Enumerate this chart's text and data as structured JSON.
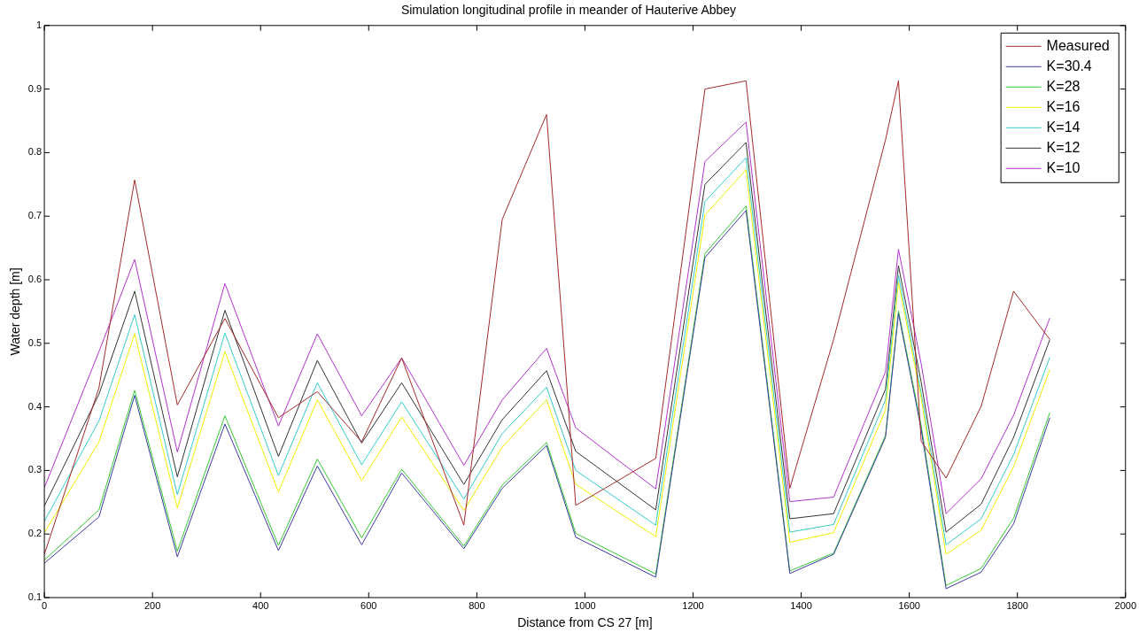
{
  "chart_data": {
    "type": "line",
    "title": "Simulation longitudinal profile in meander of Hauterive Abbey",
    "xlabel": "Distance from CS 27 [m]",
    "ylabel": "Water depth [m]",
    "x": [
      0,
      101,
      167,
      246,
      334,
      433,
      505,
      587,
      661,
      776,
      847,
      929,
      983,
      1131,
      1222,
      1298,
      1379,
      1460,
      1556,
      1580,
      1622,
      1668,
      1733,
      1793,
      1860
    ],
    "series": [
      {
        "name": "Measured",
        "color": "#a52a2a",
        "values": [
          0.168,
          0.43,
          0.757,
          0.403,
          0.539,
          0.383,
          0.424,
          0.345,
          0.477,
          0.214,
          0.695,
          0.86,
          0.245,
          0.319,
          0.9,
          0.913,
          0.272,
          0.506,
          0.82,
          0.913,
          0.346,
          0.288,
          0.401,
          0.582,
          0.506
        ]
      },
      {
        "name": "K=30.4",
        "color": "#3c3ca0",
        "values": [
          0.154,
          0.227,
          0.418,
          0.164,
          0.373,
          0.174,
          0.307,
          0.183,
          0.296,
          0.177,
          0.272,
          0.339,
          0.195,
          0.132,
          0.635,
          0.709,
          0.138,
          0.168,
          0.352,
          0.547,
          0.365,
          0.114,
          0.14,
          0.216,
          0.383
        ]
      },
      {
        "name": "K=28",
        "color": "#33cc33",
        "values": [
          0.159,
          0.238,
          0.426,
          0.173,
          0.386,
          0.182,
          0.318,
          0.194,
          0.302,
          0.181,
          0.277,
          0.344,
          0.201,
          0.137,
          0.641,
          0.716,
          0.142,
          0.17,
          0.355,
          0.551,
          0.371,
          0.119,
          0.146,
          0.225,
          0.391
        ]
      },
      {
        "name": "K=16",
        "color": "#f0f000",
        "values": [
          0.202,
          0.345,
          0.515,
          0.241,
          0.487,
          0.266,
          0.411,
          0.284,
          0.384,
          0.237,
          0.337,
          0.411,
          0.278,
          0.196,
          0.702,
          0.773,
          0.187,
          0.202,
          0.395,
          0.596,
          0.414,
          0.168,
          0.206,
          0.306,
          0.459
        ]
      },
      {
        "name": "K=14",
        "color": "#33cccc",
        "values": [
          0.22,
          0.378,
          0.545,
          0.262,
          0.516,
          0.292,
          0.438,
          0.309,
          0.408,
          0.255,
          0.358,
          0.431,
          0.3,
          0.214,
          0.723,
          0.792,
          0.203,
          0.215,
          0.411,
          0.607,
          0.422,
          0.183,
          0.224,
          0.325,
          0.478
        ]
      },
      {
        "name": "K=12",
        "color": "#333333",
        "values": [
          0.244,
          0.42,
          0.582,
          0.29,
          0.552,
          0.322,
          0.473,
          0.343,
          0.438,
          0.278,
          0.38,
          0.457,
          0.33,
          0.238,
          0.75,
          0.816,
          0.224,
          0.232,
          0.428,
          0.622,
          0.439,
          0.203,
          0.247,
          0.352,
          0.506
        ]
      },
      {
        "name": "K=10",
        "color": "#b233cc",
        "values": [
          0.273,
          0.487,
          0.632,
          0.329,
          0.594,
          0.37,
          0.515,
          0.386,
          0.477,
          0.308,
          0.411,
          0.492,
          0.367,
          0.271,
          0.786,
          0.848,
          0.251,
          0.258,
          0.455,
          0.648,
          0.468,
          0.232,
          0.287,
          0.387,
          0.54
        ]
      }
    ],
    "xlim": [
      0,
      2000
    ],
    "xticks": [
      0,
      200,
      400,
      600,
      800,
      1000,
      1200,
      1400,
      1600,
      1800,
      2000
    ],
    "ylim": [
      0.1,
      1
    ],
    "yticks": [
      0.1,
      0.2,
      0.3,
      0.4,
      0.5,
      0.6,
      0.7,
      0.8,
      0.9,
      1
    ],
    "grid": false,
    "legend": "top right",
    "marker": "none",
    "line_style": "solid"
  }
}
